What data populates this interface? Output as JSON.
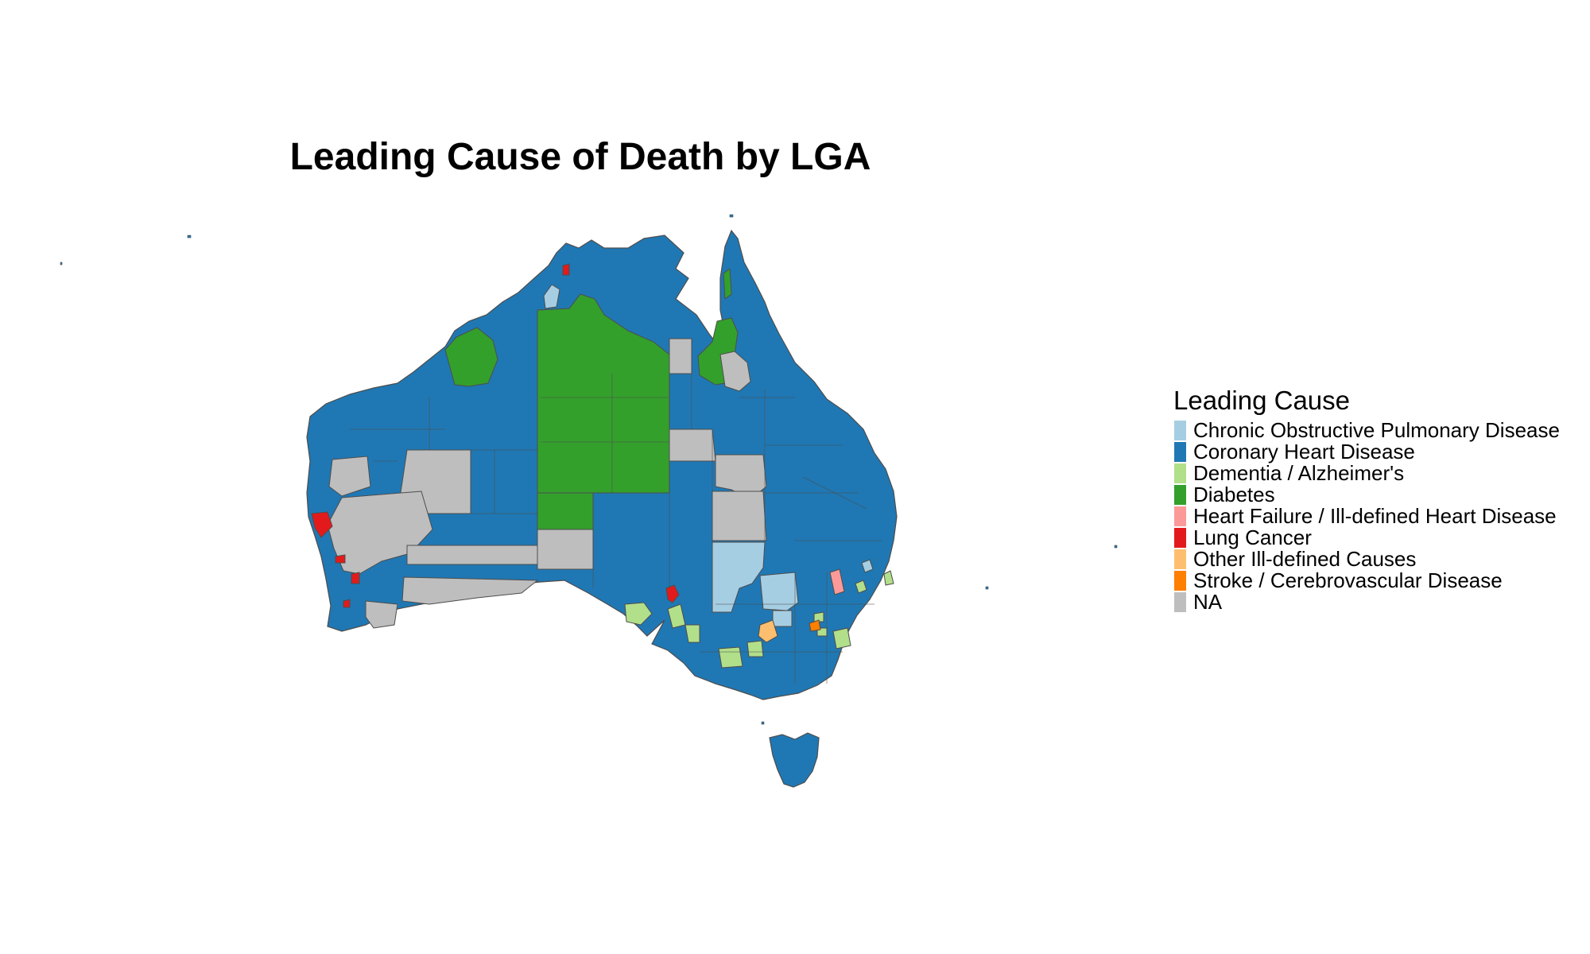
{
  "title": "Leading Cause of Death by LGA",
  "legend": {
    "title": "Leading Cause",
    "items": [
      {
        "label": "Chronic Obstructive Pulmonary Disease",
        "color": "#a6cee3"
      },
      {
        "label": "Coronary Heart Disease",
        "color": "#1f78b4"
      },
      {
        "label": "Dementia / Alzheimer's",
        "color": "#b2df8a"
      },
      {
        "label": "Diabetes",
        "color": "#33a02c"
      },
      {
        "label": "Heart Failure / Ill-defined Heart Disease",
        "color": "#fb9a99"
      },
      {
        "label": "Lung Cancer",
        "color": "#e31a1c"
      },
      {
        "label": "Other Ill-defined Causes",
        "color": "#fdbf6f"
      },
      {
        "label": "Stroke / Cerebrovascular Disease",
        "color": "#ff7f00"
      },
      {
        "label": "NA",
        "color": "#bebebe"
      }
    ]
  },
  "map": {
    "country": "Australia",
    "border_color": "#4d4d4d"
  }
}
